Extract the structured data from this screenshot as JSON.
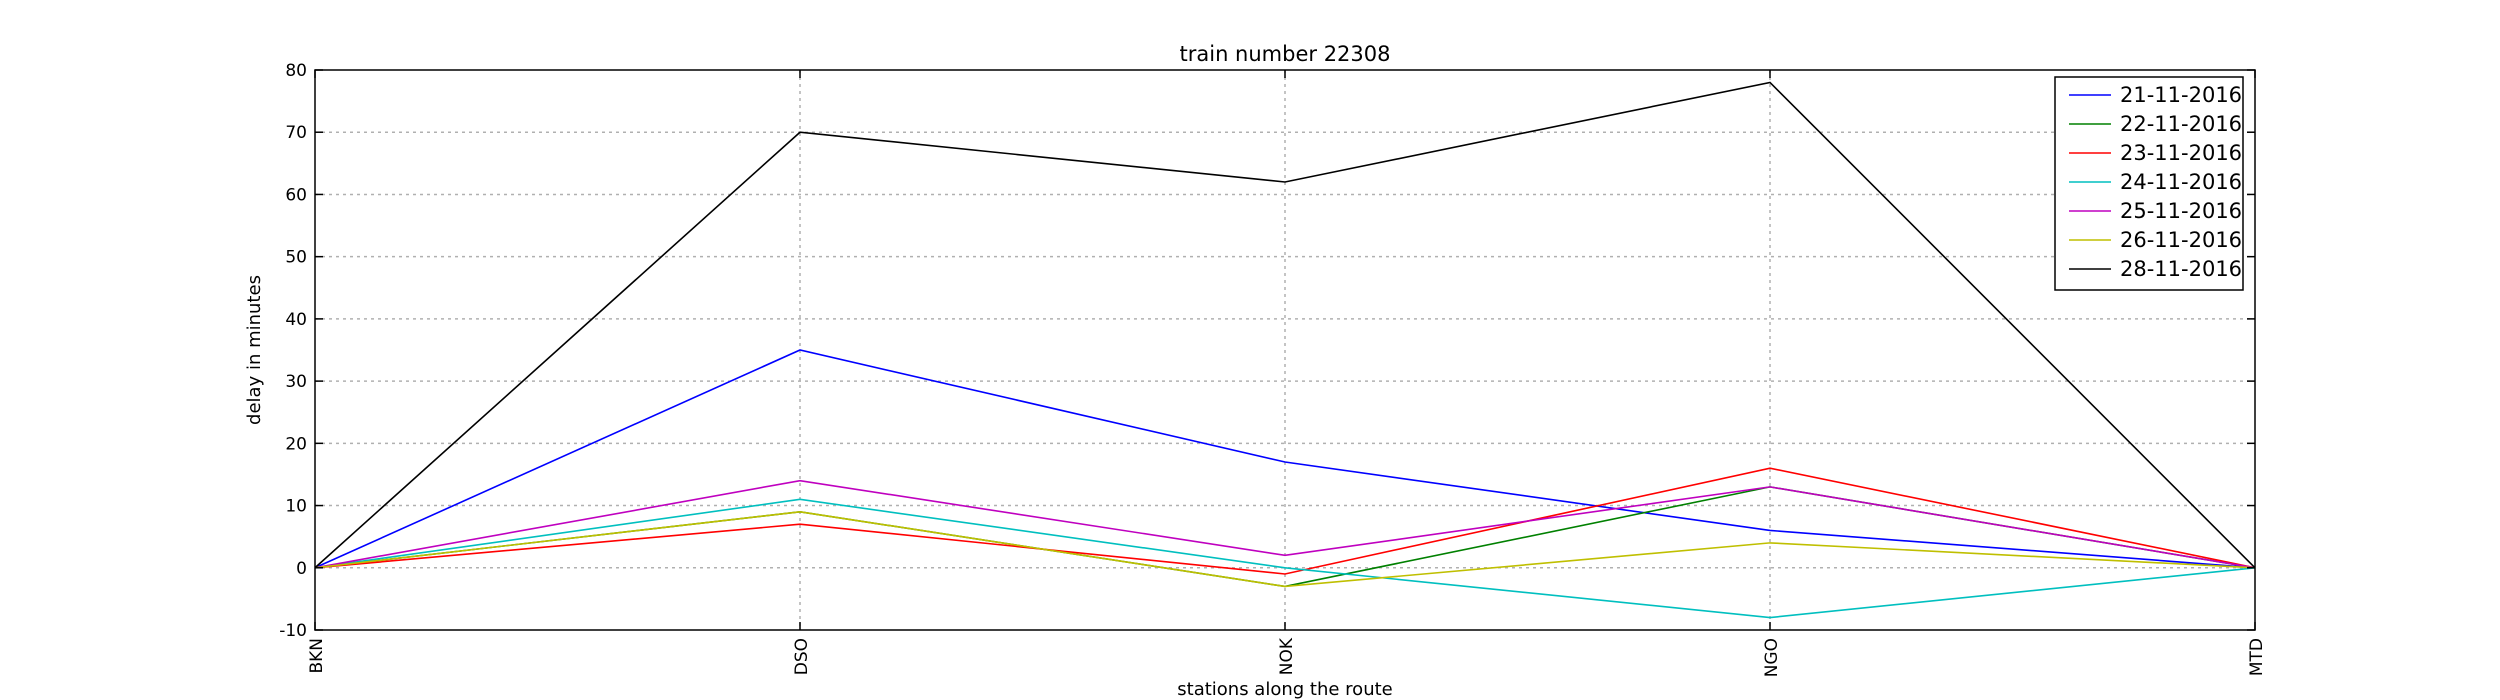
{
  "chart_data": {
    "type": "line",
    "title": "train number 22308",
    "xlabel": "stations along the route",
    "ylabel": "delay in minutes",
    "categories": [
      "BKN",
      "DSO",
      "NOK",
      "NGO",
      "MTD"
    ],
    "ylim": [
      -10,
      80
    ],
    "yticks": [
      -10,
      0,
      10,
      20,
      30,
      40,
      50,
      60,
      70,
      80
    ],
    "grid": true,
    "legend_position": "top-right",
    "series": [
      {
        "name": "21-11-2016",
        "color": "#0000ff",
        "values": [
          0,
          35,
          17,
          6,
          0
        ]
      },
      {
        "name": "22-11-2016",
        "color": "#008000",
        "values": [
          0,
          9,
          -3,
          13,
          0
        ]
      },
      {
        "name": "23-11-2016",
        "color": "#ff0000",
        "values": [
          0,
          7,
          -1,
          16,
          0
        ]
      },
      {
        "name": "24-11-2016",
        "color": "#00bfbf",
        "values": [
          0,
          11,
          0,
          -8,
          0
        ]
      },
      {
        "name": "25-11-2016",
        "color": "#bf00bf",
        "values": [
          0,
          14,
          2,
          13,
          0
        ]
      },
      {
        "name": "26-11-2016",
        "color": "#bfbf00",
        "values": [
          0,
          9,
          -3,
          4,
          0
        ]
      },
      {
        "name": "28-11-2016",
        "color": "#000000",
        "values": [
          0,
          70,
          62,
          78,
          0
        ]
      }
    ]
  }
}
